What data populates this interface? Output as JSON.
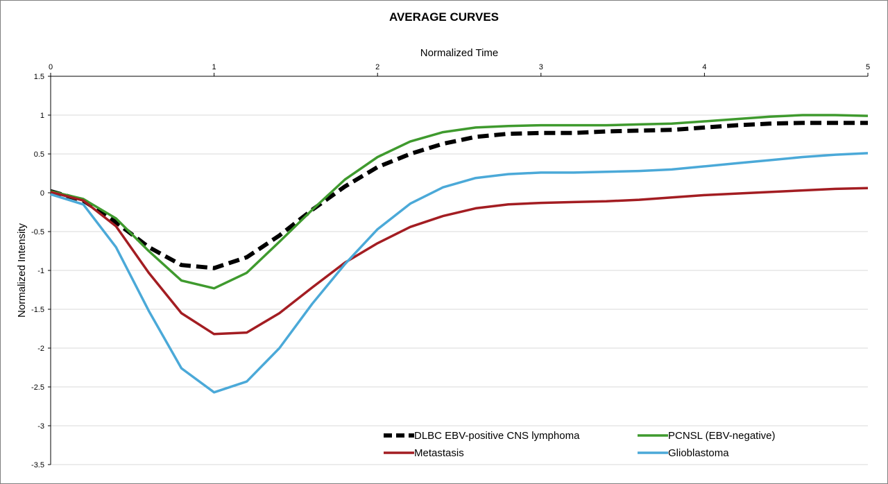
{
  "chart_data": {
    "type": "line",
    "title": "AVERAGE CURVES",
    "xlabel": "Normalized Time",
    "ylabel": "Normalized Intensity",
    "xlim": [
      0,
      5
    ],
    "ylim": [
      -3.5,
      1.5
    ],
    "x_ticks": [
      0,
      1,
      2,
      3,
      4,
      5
    ],
    "y_ticks": [
      1.5,
      1,
      0.5,
      0,
      -0.5,
      -1,
      -1.5,
      -2,
      -2.5,
      -3,
      -3.5
    ],
    "x_axis_position": "top",
    "grid": true,
    "legend_position": "bottom-right",
    "x": [
      0,
      0.2,
      0.4,
      0.6,
      0.8,
      1.0,
      1.2,
      1.4,
      1.6,
      1.8,
      2.0,
      2.2,
      2.4,
      2.6,
      2.8,
      3.0,
      3.2,
      3.4,
      3.6,
      3.8,
      4.0,
      4.2,
      4.4,
      4.6,
      4.8,
      5.0
    ],
    "series": [
      {
        "name": "DLBC EBV-positive CNS lymphoma",
        "color": "#000000",
        "dashed": true,
        "values": [
          0.02,
          -0.1,
          -0.38,
          -0.7,
          -0.93,
          -0.97,
          -0.83,
          -0.55,
          -0.22,
          0.08,
          0.33,
          0.5,
          0.63,
          0.72,
          0.76,
          0.77,
          0.77,
          0.79,
          0.8,
          0.81,
          0.84,
          0.87,
          0.89,
          0.9,
          0.9,
          0.9
        ]
      },
      {
        "name": "PCNSL (EBV-negative)",
        "color": "#3f9a2e",
        "dashed": false,
        "values": [
          0.02,
          -0.08,
          -0.33,
          -0.75,
          -1.13,
          -1.23,
          -1.03,
          -0.63,
          -0.22,
          0.17,
          0.46,
          0.66,
          0.78,
          0.84,
          0.86,
          0.87,
          0.87,
          0.87,
          0.88,
          0.89,
          0.92,
          0.95,
          0.98,
          1.0,
          1.0,
          0.99
        ]
      },
      {
        "name": "Metastasis",
        "color": "#a31d22",
        "dashed": false,
        "values": [
          0.01,
          -0.1,
          -0.43,
          -1.03,
          -1.55,
          -1.82,
          -1.8,
          -1.55,
          -1.22,
          -0.9,
          -0.65,
          -0.44,
          -0.3,
          -0.2,
          -0.15,
          -0.13,
          -0.12,
          -0.11,
          -0.09,
          -0.06,
          -0.03,
          -0.01,
          0.01,
          0.03,
          0.05,
          0.06
        ]
      },
      {
        "name": "Glioblastoma",
        "color": "#4ba9d8",
        "dashed": false,
        "values": [
          -0.02,
          -0.15,
          -0.7,
          -1.52,
          -2.26,
          -2.57,
          -2.43,
          -2.0,
          -1.43,
          -0.92,
          -0.47,
          -0.14,
          0.07,
          0.19,
          0.24,
          0.26,
          0.26,
          0.27,
          0.28,
          0.3,
          0.34,
          0.38,
          0.42,
          0.46,
          0.49,
          0.51
        ]
      }
    ]
  }
}
